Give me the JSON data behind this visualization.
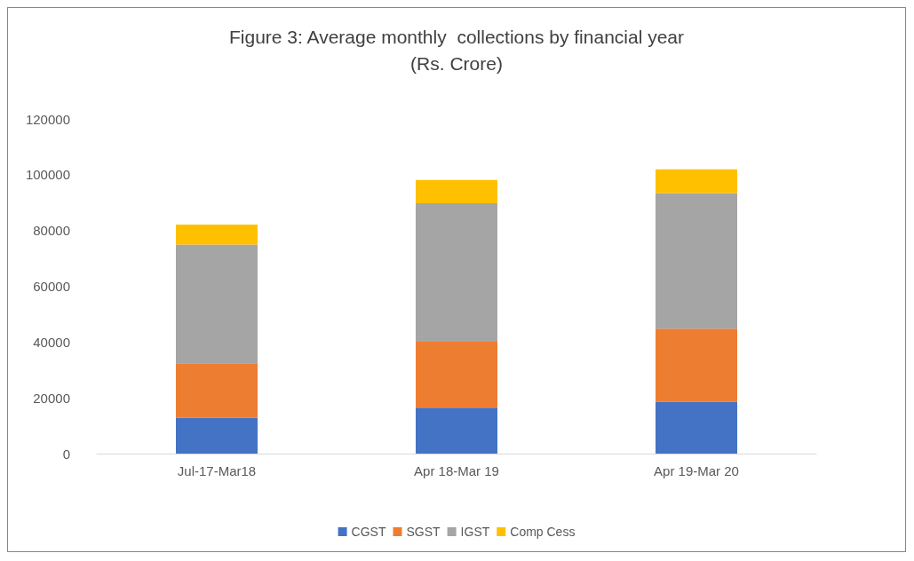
{
  "chart_data": {
    "type": "bar",
    "title": "Figure 3: Average monthly  collections by financial year\n(Rs. Crore)",
    "categories": [
      "Jul-17-Mar18",
      "Apr 18-Mar 19",
      "Apr 19-Mar 20"
    ],
    "series": [
      {
        "name": "CGST",
        "color": "#4472c4",
        "values": [
          12800,
          16500,
          18600
        ]
      },
      {
        "name": "SGST",
        "color": "#ed7d31",
        "values": [
          19600,
          23600,
          26200
        ]
      },
      {
        "name": "IGST",
        "color": "#a5a5a5",
        "values": [
          42600,
          49700,
          48600
        ]
      },
      {
        "name": "Comp Cess",
        "color": "#ffc000",
        "values": [
          7100,
          8300,
          8500
        ]
      }
    ],
    "stacked": true,
    "ylim": [
      0,
      120000
    ],
    "yticks": [
      0,
      20000,
      40000,
      60000,
      80000,
      100000,
      120000
    ],
    "grid": false,
    "legend": "bottom"
  }
}
